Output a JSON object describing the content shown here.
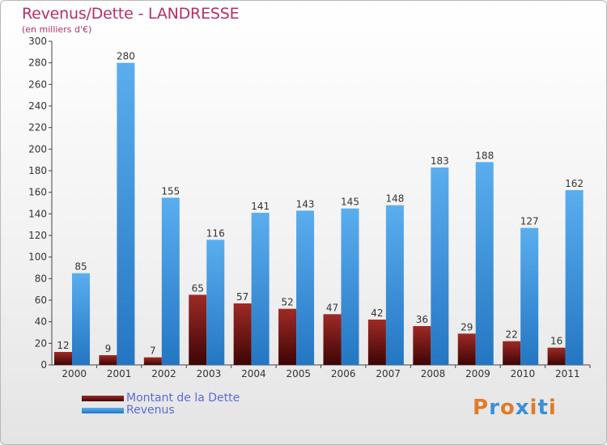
{
  "title": "Revenus/Dette - LANDRESSE",
  "subtitle": "(en milliers d'€)",
  "logo_text": "Proxiti",
  "colors": {
    "title": "#b0306a",
    "dette": "#7a1010",
    "revenus": "#3d92dc",
    "axis_text": "#333333",
    "legend_text": "#5b6bd6",
    "logo_letters": [
      "#e07b28",
      "#3c8fd6",
      "#e07b28",
      "#3c8fd6",
      "#e07b28",
      "#3c8fd6",
      "#e07b28"
    ]
  },
  "chart_data": {
    "type": "bar",
    "categories": [
      "2000",
      "2001",
      "2002",
      "2003",
      "2004",
      "2005",
      "2006",
      "2007",
      "2008",
      "2009",
      "2010",
      "2011"
    ],
    "series": [
      {
        "name": "Montant de la Dette",
        "values": [
          12,
          9,
          7,
          65,
          57,
          52,
          47,
          42,
          36,
          29,
          22,
          16
        ]
      },
      {
        "name": "Revenus",
        "values": [
          85,
          280,
          155,
          116,
          141,
          143,
          145,
          148,
          183,
          188,
          127,
          162
        ]
      }
    ],
    "ylim": [
      0,
      300
    ],
    "yticks": [
      0,
      20,
      40,
      60,
      80,
      100,
      120,
      140,
      160,
      180,
      200,
      220,
      240,
      260,
      280,
      300
    ],
    "grid": false,
    "legend_position": "bottom-left"
  }
}
